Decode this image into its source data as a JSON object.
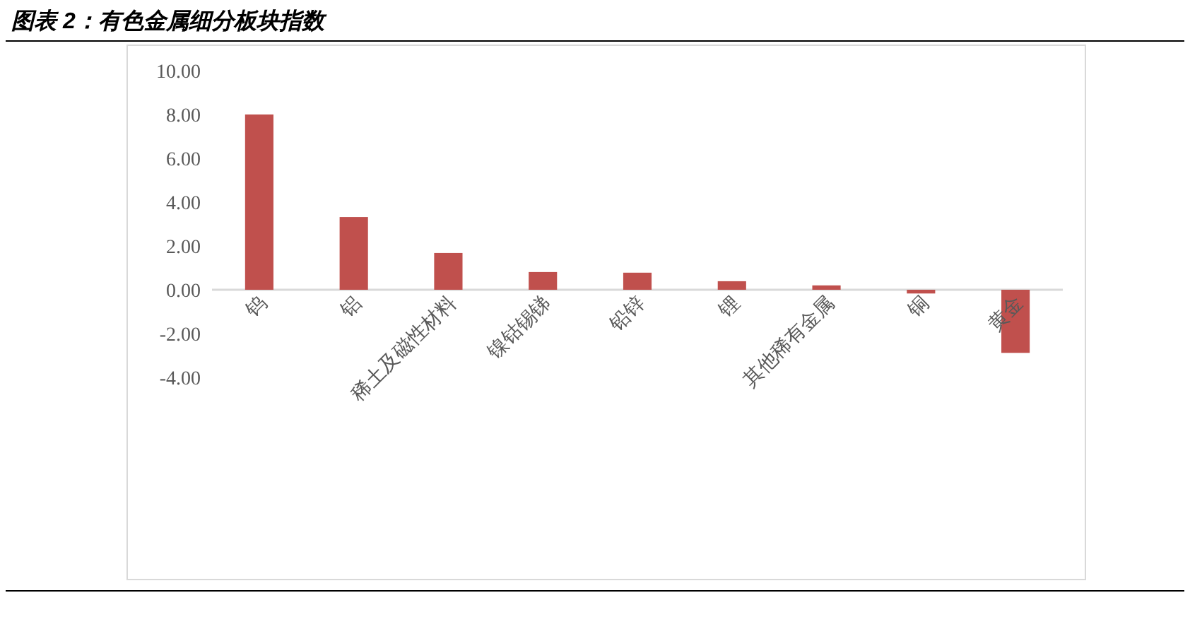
{
  "chart_data": {
    "type": "bar",
    "title": "图表 2：有色金属细分板块指数",
    "categories": [
      "钨",
      "铝",
      "稀土及磁性材料",
      "镍钴锡锑",
      "铅锌",
      "锂",
      "其他稀有金属",
      "铜",
      "黄金"
    ],
    "values": [
      8.0,
      3.32,
      1.68,
      0.81,
      0.78,
      0.39,
      0.2,
      -0.17,
      -2.88
    ],
    "color": "#c0504d",
    "ylim": [
      -4,
      10
    ],
    "yticks": [
      {
        "value": -4,
        "label": "-4.00"
      },
      {
        "value": -2,
        "label": "-2.00"
      },
      {
        "value": 0,
        "label": "0.00"
      },
      {
        "value": 2,
        "label": "2.00"
      },
      {
        "value": 4,
        "label": "4.00"
      },
      {
        "value": 6,
        "label": "6.00"
      },
      {
        "value": 8,
        "label": "8.00"
      },
      {
        "value": 10,
        "label": "10.00"
      }
    ],
    "grid": false
  }
}
